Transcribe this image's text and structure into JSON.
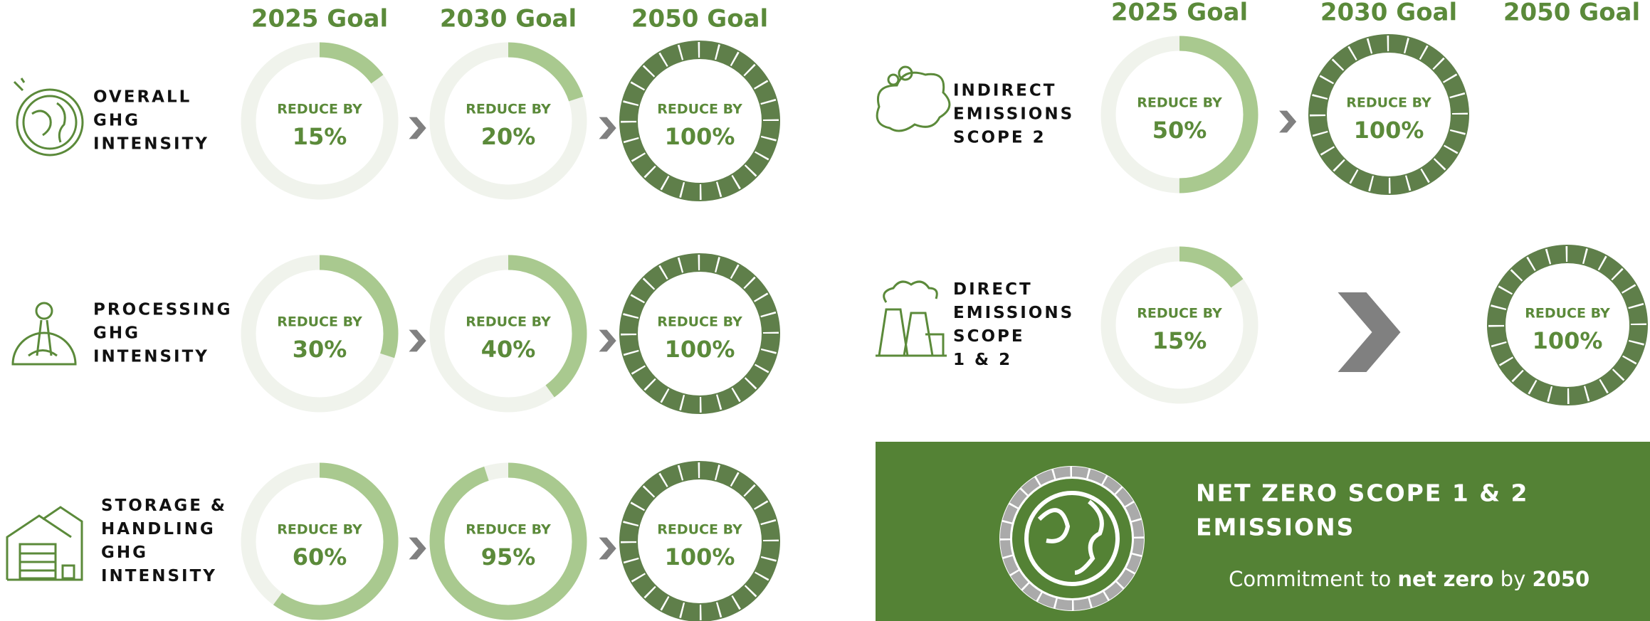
{
  "left": {
    "headers": [
      "2025 Goal",
      "2030 Goal",
      "2050 Goal"
    ],
    "rows": [
      {
        "label": [
          "OVERALL",
          "GHG",
          "INTENSITY"
        ],
        "goals": [
          {
            "prefix": "REDUCE BY",
            "value": 15,
            "label": "15%"
          },
          {
            "prefix": "REDUCE BY",
            "value": 20,
            "label": "20%"
          },
          {
            "prefix": "REDUCE BY",
            "value": 100,
            "label": "100%"
          }
        ]
      },
      {
        "label": [
          "PROCESSING",
          "GHG",
          "INTENSITY"
        ],
        "goals": [
          {
            "prefix": "REDUCE BY",
            "value": 30,
            "label": "30%"
          },
          {
            "prefix": "REDUCE BY",
            "value": 40,
            "label": "40%"
          },
          {
            "prefix": "REDUCE BY",
            "value": 100,
            "label": "100%"
          }
        ]
      },
      {
        "label": [
          "STORAGE &",
          "HANDLING",
          "GHG",
          "INTENSITY"
        ],
        "goals": [
          {
            "prefix": "REDUCE BY",
            "value": 60,
            "label": "60%"
          },
          {
            "prefix": "REDUCE BY",
            "value": 95,
            "label": "95%"
          },
          {
            "prefix": "REDUCE BY",
            "value": 100,
            "label": "100%"
          }
        ]
      }
    ]
  },
  "right": {
    "headers": [
      "2025 Goal",
      "2030 Goal",
      "2050 Goal"
    ],
    "rows": [
      {
        "label": [
          "INDIRECT",
          "EMISSIONS",
          "SCOPE 2"
        ],
        "goals": [
          {
            "prefix": "REDUCE BY",
            "value": 50,
            "label": "50%"
          },
          {
            "prefix": "REDUCE BY",
            "value": 100,
            "label": "100%"
          },
          null
        ]
      },
      {
        "label": [
          "DIRECT",
          "EMISSIONS",
          "SCOPE",
          "1 & 2"
        ],
        "goals": [
          {
            "prefix": "REDUCE BY",
            "value": 15,
            "label": "15%"
          },
          null,
          {
            "prefix": "REDUCE BY",
            "value": 100,
            "label": "100%"
          }
        ]
      }
    ]
  },
  "banner": {
    "title": [
      "NET ZERO SCOPE 1 & 2",
      "EMISSIONS"
    ],
    "text": [
      "Commitment to ",
      "net zero",
      " by ",
      "2050"
    ]
  }
}
